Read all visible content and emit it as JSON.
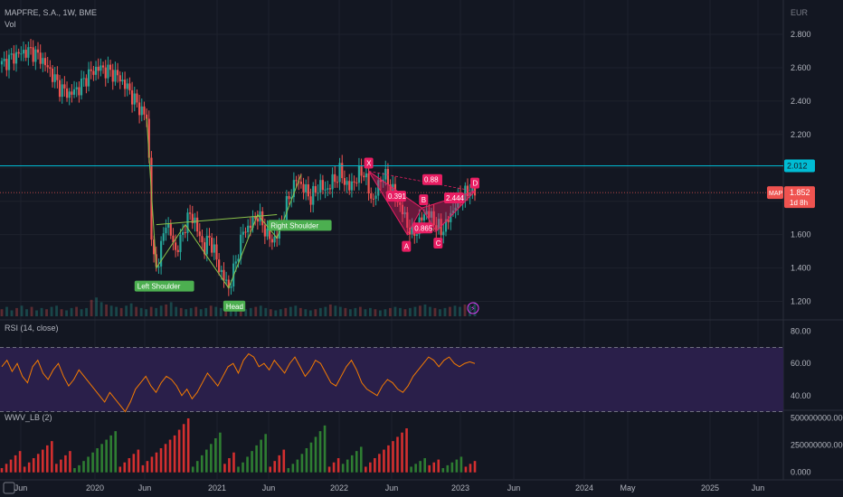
{
  "header": {
    "symbol_line": "MAPFRE, S.A., 1W, BME",
    "vol_label": "Vol",
    "currency": "EUR",
    "rsi_label": "RSI (14, close)",
    "wwv_label": "WWV_LB (2)"
  },
  "colors": {
    "background": "#131722",
    "grid": "#1e222d",
    "up": "#26a69a",
    "down": "#ef5350",
    "pattern": "#e91e63",
    "hs_line": "#8bc34a",
    "hs_label": "#4caf50",
    "resistance": "#00bcd4",
    "rsi_line": "#f57c00",
    "rsi_band": "#2a1f4a",
    "wwv_up": "#2e7d32",
    "wwv_down": "#d32f2f"
  },
  "chart_data": [
    {
      "type": "candlestick",
      "symbol": "MAPFRE, S.A.",
      "interval": "1W",
      "exchange": "BME",
      "y_axis": {
        "ticks": [
          "2.800",
          "2.600",
          "2.400",
          "2.200",
          "2.000",
          "1.800",
          "1.600",
          "1.400",
          "1.200"
        ],
        "tick_values": [
          2.8,
          2.6,
          2.4,
          2.2,
          2.0,
          1.8,
          1.6,
          1.4,
          1.2
        ],
        "range": [
          1.1,
          2.93
        ]
      },
      "x_axis": {
        "ticks": [
          "Jun",
          "2020",
          "Jun",
          "2021",
          "Jun",
          "2022",
          "Jun",
          "2023",
          "Jun",
          "2024",
          "May",
          "2025",
          "Jun"
        ]
      },
      "last_price": {
        "label": "1.852",
        "value": 1.852,
        "ticker": "MAP",
        "countdown": "1d 8h"
      },
      "resistance": {
        "label": "2.012",
        "value": 2.012
      },
      "price_path": [
        [
          0,
          2.62
        ],
        [
          4,
          2.66
        ],
        [
          8,
          2.69
        ],
        [
          12,
          2.7
        ],
        [
          16,
          2.66
        ],
        [
          20,
          2.58
        ],
        [
          24,
          2.48
        ],
        [
          28,
          2.44
        ],
        [
          32,
          2.48
        ],
        [
          36,
          2.56
        ],
        [
          40,
          2.6
        ],
        [
          44,
          2.58
        ],
        [
          48,
          2.55
        ],
        [
          52,
          2.48
        ],
        [
          56,
          2.38
        ],
        [
          60,
          2.3
        ],
        [
          61,
          2.05
        ],
        [
          62,
          1.6
        ],
        [
          63,
          1.45
        ],
        [
          64,
          1.4
        ],
        [
          66,
          1.52
        ],
        [
          68,
          1.68
        ],
        [
          70,
          1.6
        ],
        [
          72,
          1.5
        ],
        [
          74,
          1.56
        ],
        [
          76,
          1.66
        ],
        [
          78,
          1.72
        ],
        [
          80,
          1.68
        ],
        [
          82,
          1.58
        ],
        [
          84,
          1.52
        ],
        [
          86,
          1.58
        ],
        [
          88,
          1.5
        ],
        [
          90,
          1.4
        ],
        [
          92,
          1.34
        ],
        [
          94,
          1.28
        ],
        [
          96,
          1.38
        ],
        [
          98,
          1.5
        ],
        [
          100,
          1.62
        ],
        [
          102,
          1.64
        ],
        [
          104,
          1.68
        ],
        [
          106,
          1.72
        ],
        [
          108,
          1.66
        ],
        [
          110,
          1.6
        ],
        [
          112,
          1.56
        ],
        [
          114,
          1.6
        ],
        [
          116,
          1.68
        ],
        [
          118,
          1.78
        ],
        [
          120,
          1.86
        ],
        [
          122,
          1.93
        ],
        [
          124,
          1.9
        ],
        [
          126,
          1.86
        ],
        [
          128,
          1.82
        ],
        [
          130,
          1.86
        ],
        [
          132,
          1.9
        ],
        [
          134,
          1.86
        ],
        [
          136,
          1.9
        ],
        [
          138,
          1.93
        ],
        [
          140,
          1.98
        ],
        [
          142,
          1.92
        ],
        [
          144,
          1.88
        ],
        [
          146,
          1.92
        ],
        [
          148,
          1.96
        ],
        [
          150,
          1.98
        ],
        [
          152,
          1.86
        ],
        [
          154,
          1.8
        ],
        [
          156,
          1.9
        ],
        [
          158,
          1.96
        ],
        [
          160,
          1.92
        ],
        [
          162,
          1.86
        ],
        [
          164,
          1.8
        ],
        [
          166,
          1.74
        ],
        [
          168,
          1.66
        ],
        [
          170,
          1.6
        ],
        [
          172,
          1.63
        ],
        [
          174,
          1.7
        ],
        [
          176,
          1.74
        ],
        [
          178,
          1.7
        ],
        [
          180,
          1.66
        ],
        [
          182,
          1.62
        ],
        [
          184,
          1.66
        ],
        [
          186,
          1.72
        ],
        [
          188,
          1.78
        ],
        [
          190,
          1.82
        ],
        [
          192,
          1.84
        ],
        [
          194,
          1.87
        ],
        [
          196,
          1.85
        ]
      ],
      "volume_profile": [
        6,
        8,
        5,
        7,
        9,
        6,
        8,
        5,
        7,
        6,
        8,
        9,
        6,
        5,
        7,
        8,
        6,
        7,
        14,
        16,
        12,
        10,
        9,
        8,
        7,
        9,
        11,
        8,
        7,
        6,
        8,
        7,
        9,
        10,
        12,
        8,
        7,
        6,
        7,
        8,
        6,
        7,
        9,
        8,
        7,
        6,
        5,
        7,
        8,
        6,
        7,
        8,
        9,
        7,
        6,
        5,
        6,
        7,
        8,
        9,
        7,
        6,
        5,
        6,
        7,
        8,
        10,
        9,
        8,
        7,
        6,
        7,
        8,
        6,
        7,
        6,
        5,
        6,
        7,
        8,
        7,
        6,
        7,
        8,
        9,
        10,
        8,
        7,
        6,
        7,
        8,
        9,
        8,
        10,
        9,
        12
      ],
      "annotations": {
        "head_and_shoulders": [
          {
            "label": "Left Shoulder",
            "x": 64,
            "value": 1.4
          },
          {
            "label": "Head",
            "x": 94,
            "value": 1.28
          },
          {
            "label": "Right Shoulder",
            "x": 114,
            "value": 1.58
          }
        ],
        "harmonic_points": [
          {
            "label": "X",
            "x": 152,
            "value": 1.98
          },
          {
            "label": "A",
            "x": 168,
            "value": 1.6
          },
          {
            "label": "B",
            "x": 174,
            "value": 1.76
          },
          {
            "label": "C",
            "x": 180,
            "value": 1.62
          },
          {
            "label": "D",
            "x": 196,
            "value": 1.86
          }
        ],
        "harmonic_ratios": [
          "0.88",
          "0.391",
          "2.444",
          "0.865"
        ]
      }
    },
    {
      "type": "line",
      "name": "RSI (14, close)",
      "y_axis": {
        "ticks": [
          "80.00",
          "60.00",
          "40.00"
        ],
        "tick_values": [
          80,
          60,
          40
        ],
        "range": [
          32,
          86
        ]
      },
      "bands": [
        70,
        30
      ],
      "values": [
        58,
        62,
        55,
        60,
        52,
        48,
        58,
        62,
        54,
        50,
        56,
        60,
        52,
        46,
        50,
        56,
        52,
        48,
        44,
        40,
        36,
        42,
        38,
        34,
        30,
        36,
        44,
        48,
        52,
        46,
        42,
        48,
        52,
        50,
        46,
        40,
        44,
        38,
        42,
        48,
        54,
        50,
        46,
        52,
        58,
        60,
        54,
        62,
        66,
        64,
        58,
        60,
        56,
        62,
        58,
        54,
        60,
        64,
        58,
        52,
        56,
        62,
        60,
        54,
        48,
        46,
        52,
        58,
        62,
        56,
        48,
        44,
        42,
        40,
        46,
        50,
        48,
        44,
        42,
        46,
        52,
        56,
        60,
        64,
        62,
        58,
        62,
        64,
        60,
        58,
        60,
        61,
        60
      ]
    },
    {
      "type": "bar",
      "name": "WWV_LB (2)",
      "y_axis": {
        "ticks": [
          "500000000.000",
          "250000000.000",
          "0.000"
        ],
        "tick_values": [
          500000000,
          250000000,
          0
        ],
        "range": [
          -60000000,
          560000000
        ]
      },
      "values": [
        30,
        60,
        90,
        120,
        150,
        40,
        70,
        100,
        130,
        160,
        190,
        220,
        60,
        90,
        120,
        150,
        30,
        50,
        80,
        110,
        140,
        170,
        200,
        230,
        260,
        290,
        40,
        70,
        100,
        130,
        160,
        50,
        80,
        110,
        140,
        170,
        200,
        230,
        260,
        300,
        340,
        380,
        40,
        80,
        120,
        160,
        200,
        240,
        280,
        60,
        100,
        140,
        40,
        70,
        110,
        150,
        190,
        230,
        270,
        40,
        80,
        120,
        160,
        30,
        60,
        90,
        130,
        170,
        210,
        250,
        290,
        330,
        40,
        70,
        100,
        60,
        90,
        120,
        150,
        180,
        40,
        70,
        100,
        130,
        160,
        190,
        220,
        250,
        280,
        310,
        40,
        60,
        80,
        100,
        50,
        70,
        90,
        30,
        50,
        70,
        90,
        110,
        40,
        60,
        80
      ],
      "directions": [
        "d",
        "d",
        "d",
        "d",
        "d",
        "d",
        "d",
        "d",
        "d",
        "d",
        "d",
        "d",
        "d",
        "d",
        "d",
        "d",
        "u",
        "u",
        "u",
        "u",
        "u",
        "u",
        "u",
        "u",
        "u",
        "u",
        "d",
        "d",
        "d",
        "d",
        "d",
        "d",
        "d",
        "d",
        "d",
        "d",
        "d",
        "d",
        "d",
        "d",
        "d",
        "d",
        "u",
        "u",
        "u",
        "u",
        "u",
        "u",
        "u",
        "d",
        "d",
        "d",
        "u",
        "u",
        "u",
        "u",
        "u",
        "u",
        "u",
        "d",
        "d",
        "d",
        "d",
        "u",
        "u",
        "u",
        "u",
        "u",
        "u",
        "u",
        "u",
        "u",
        "d",
        "d",
        "d",
        "u",
        "u",
        "u",
        "u",
        "u",
        "d",
        "d",
        "d",
        "d",
        "d",
        "d",
        "d",
        "d",
        "d",
        "d",
        "u",
        "u",
        "u",
        "u",
        "d",
        "d",
        "d",
        "u",
        "u",
        "u",
        "u",
        "u",
        "d",
        "d",
        "d"
      ]
    }
  ]
}
